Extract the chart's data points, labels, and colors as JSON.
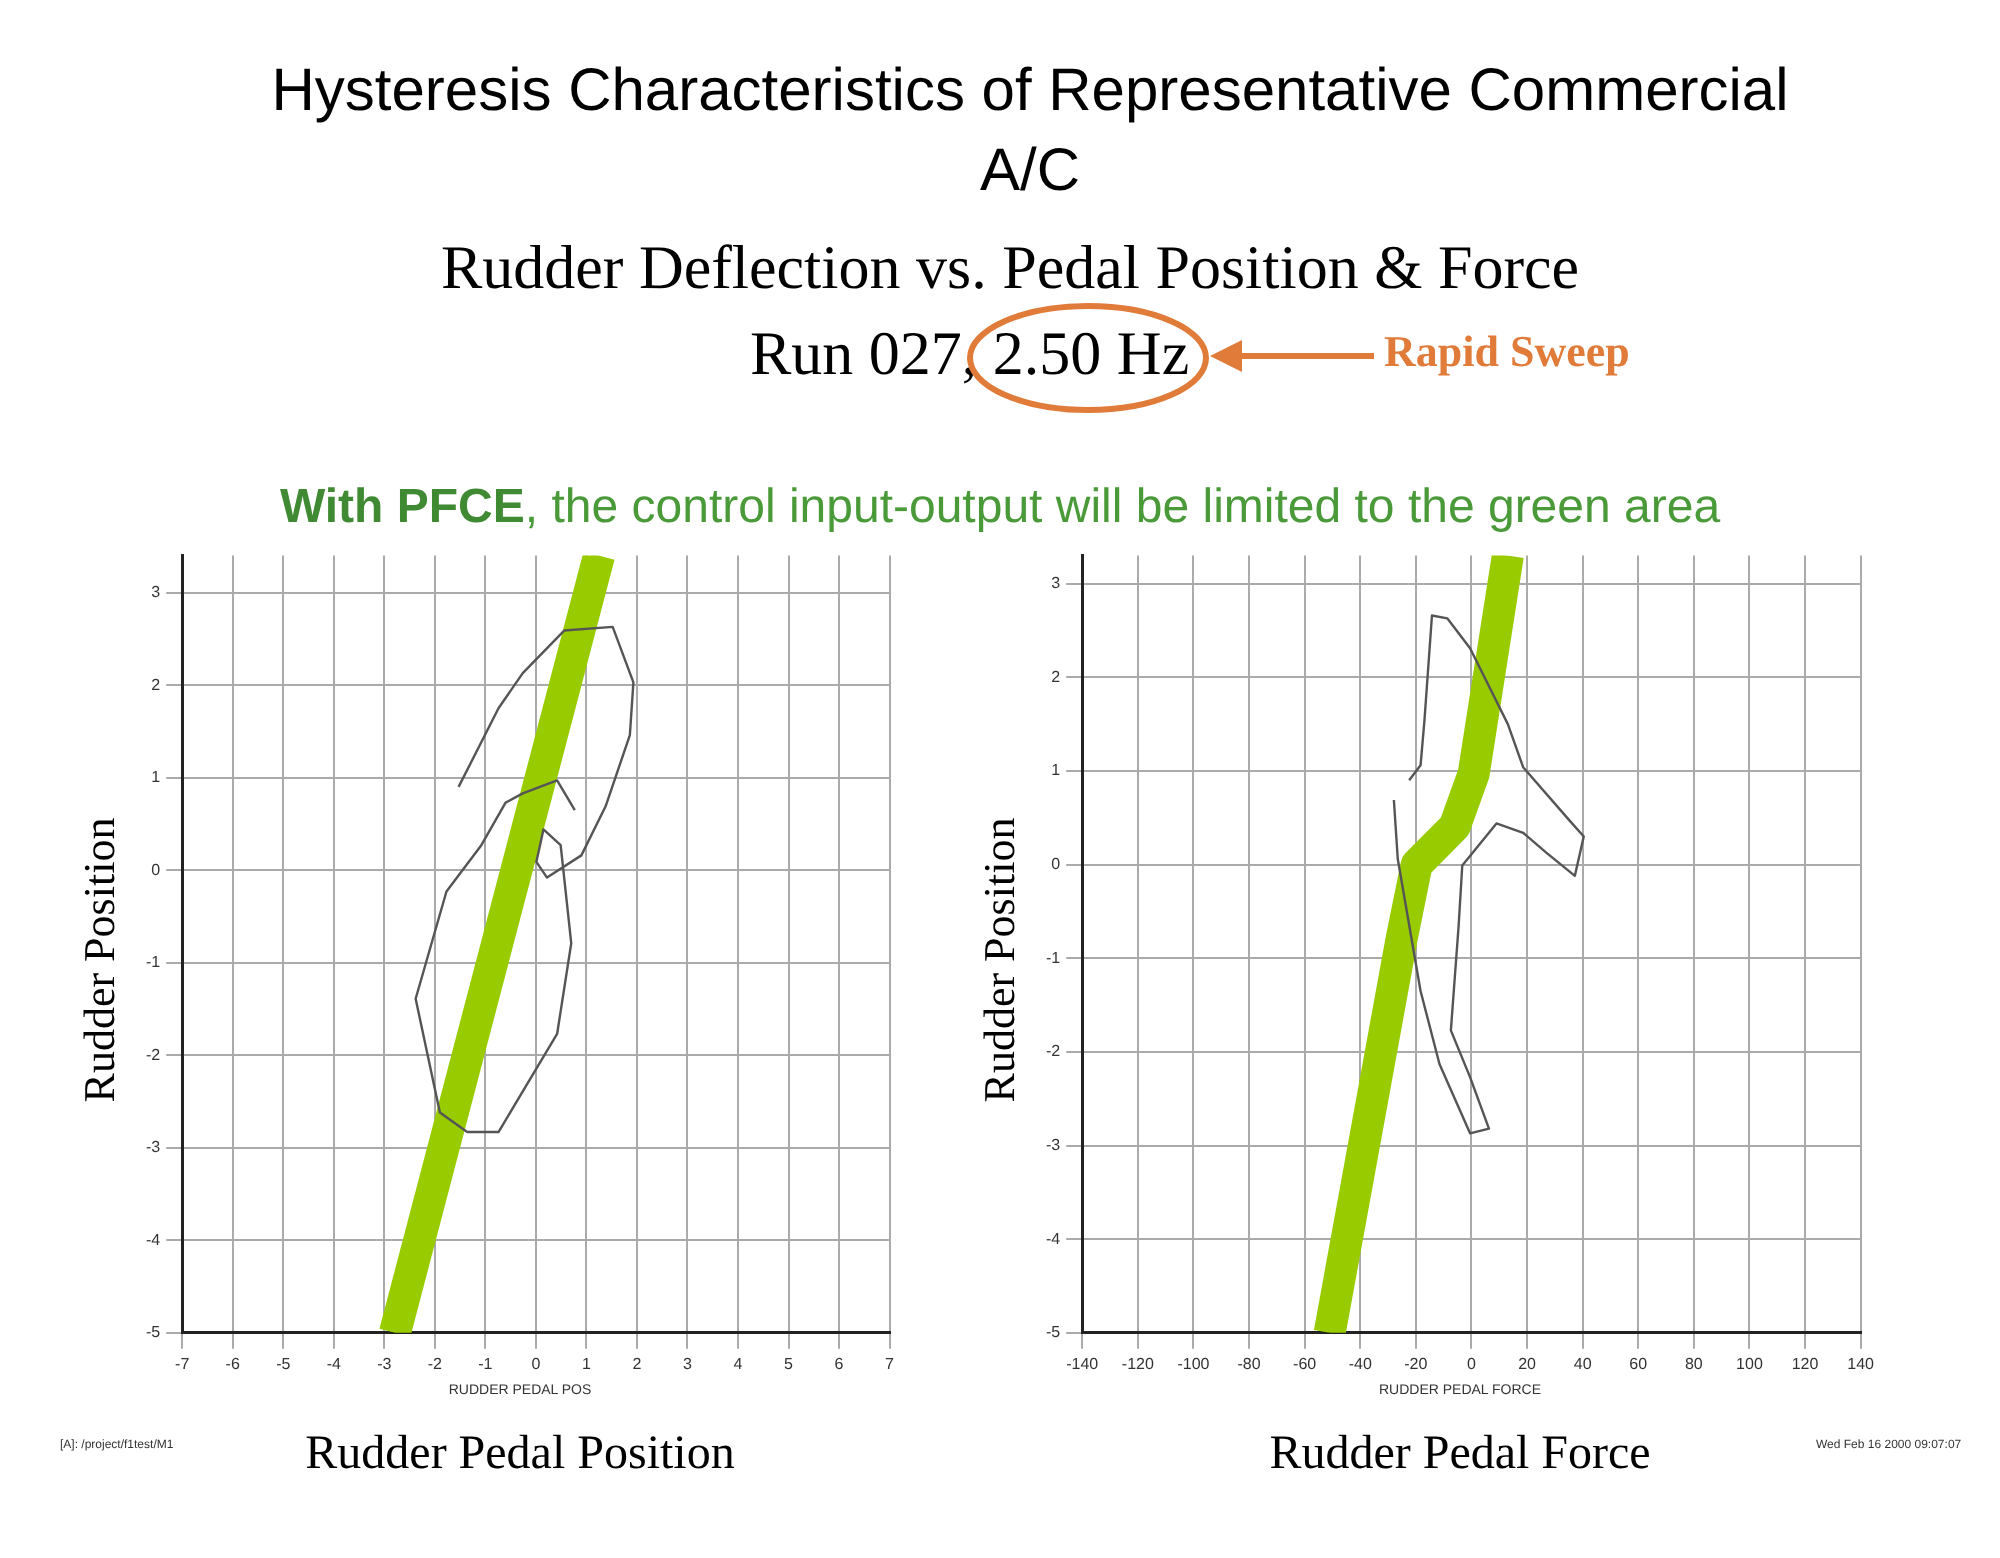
{
  "chart_data": [
    {
      "type": "line",
      "title": "Hysteresis Characteristics of Representative Commercial A/C",
      "subtitle": "Rudder Deflection vs. Pedal Position & Force",
      "xlabel": "Rudder Pedal Position",
      "ylabel": "Rudder Position",
      "annotations": [
        "Run 027, 2.50 Hz",
        "Rapid Sweep",
        "With PFCE, the control input-output will be limited to the green area",
        "RUDDER PEDAL POS",
        "[A]: /project/f1test/M1"
      ],
      "series": [
        {
          "color": "#555555",
          "x": [
            -1.53,
            -0.74,
            -0.26,
            0.56,
            1.52,
            1.93,
            1.86,
            1.38,
            0.9,
            0.22,
            0.01,
            0.15,
            0.49,
            0.7,
            0.42,
            -0.74,
            -1.36,
            -1.9,
            -2.38,
            -1.77,
            -1.08,
            -0.6,
            -0.26,
            0.42,
            0.77
          ],
          "values": [
            0.9,
            1.75,
            2.13,
            2.59,
            2.63,
            2.03,
            1.46,
            0.69,
            0.16,
            -0.08,
            0.09,
            0.44,
            0.27,
            -0.79,
            -1.77,
            -2.83,
            -2.83,
            -2.62,
            -1.39,
            -0.23,
            0.27,
            0.73,
            0.83,
            0.97,
            0.65
          ]
        },
        {
          "color": "#99cc00",
          "x": [
            -2.79,
            1.25
          ],
          "values": [
            -5,
            3.4
          ]
        }
      ],
      "xlim": [
        -7,
        7
      ],
      "xticks": [
        -7,
        -6,
        -5,
        -4,
        -3,
        -2,
        -1,
        0,
        1,
        2,
        3,
        4,
        5,
        6,
        7
      ],
      "ylim": [
        -5,
        3.4
      ],
      "yticks": [
        -5,
        -4,
        -3,
        -2,
        -1,
        0,
        1,
        2,
        3
      ],
      "grid": true,
      "legend": false,
      "marker": "none",
      "line_style": "solid"
    },
    {
      "type": "line",
      "xlabel": "Rudder Pedal Force",
      "ylabel": "Rudder Position",
      "annotations": [
        "RUDDER PEDAL FORCE",
        "Wed Feb 16 2000 09:07:07"
      ],
      "series": [
        {
          "color": "#555555",
          "x": [
            -22.4,
            -18.3,
            -16.9,
            -14.2,
            -8.7,
            -0.5,
            13.1,
            18.6,
            35,
            40.4,
            37.2,
            26.8,
            18.6,
            9,
            -3.3,
            -4.6,
            -7.4,
            -0.5,
            6.3,
            -0.5,
            -11.5,
            -18.3,
            -26.5,
            -27.9
          ],
          "values": [
            0.9,
            1.06,
            1.54,
            2.66,
            2.63,
            2.31,
            1.5,
            1.04,
            0.48,
            0.3,
            -0.12,
            0.13,
            0.34,
            0.44,
            -0.01,
            -0.65,
            -1.77,
            -2.27,
            -2.82,
            -2.87,
            -2.13,
            -1.35,
            0.06,
            0.69
          ]
        },
        {
          "color": "#99cc00",
          "x": [
            -51,
            -25.1,
            -19.7,
            -6,
            0.8,
            13.1
          ],
          "values": [
            -5,
            -0.79,
            0,
            0.41,
            0.97,
            3.3
          ]
        }
      ],
      "xlim": [
        -140,
        140
      ],
      "xticks": [
        -140,
        -120,
        -100,
        -80,
        -60,
        -40,
        -20,
        0,
        20,
        40,
        60,
        80,
        100,
        120,
        140
      ],
      "ylim": [
        -5,
        3.3
      ],
      "yticks": [
        -5,
        -4,
        -3,
        -2,
        -1,
        0,
        1,
        2,
        3
      ],
      "grid": true,
      "legend": false,
      "marker": "none",
      "line_style": "solid"
    }
  ]
}
